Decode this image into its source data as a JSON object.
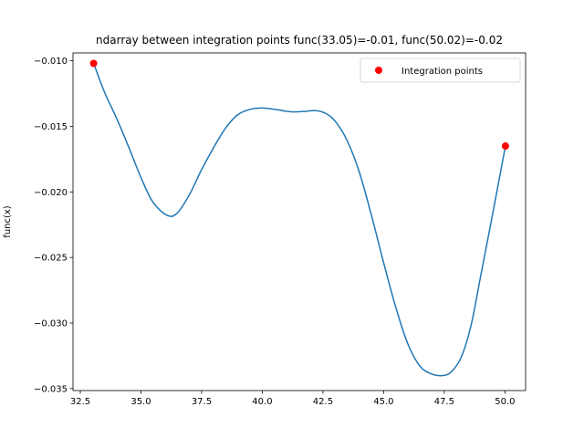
{
  "chart_data": {
    "type": "line",
    "title": "ndarray between integration points func(33.05)=-0.01, func(50.02)=-0.02",
    "xlabel": "",
    "ylabel": "func(x)",
    "xlim": [
      32.2,
      50.85
    ],
    "ylim": [
      -0.03515,
      -0.0094
    ],
    "xticks": [
      {
        "value": 32.5,
        "label": "32.5"
      },
      {
        "value": 35.0,
        "label": "35.0"
      },
      {
        "value": 37.5,
        "label": "37.5"
      },
      {
        "value": 40.0,
        "label": "40.0"
      },
      {
        "value": 42.5,
        "label": "42.5"
      },
      {
        "value": 45.0,
        "label": "45.0"
      },
      {
        "value": 47.5,
        "label": "47.5"
      },
      {
        "value": 50.0,
        "label": "50.0"
      }
    ],
    "yticks": [
      {
        "value": -0.01,
        "label": "−0.010"
      },
      {
        "value": -0.015,
        "label": "−0.015"
      },
      {
        "value": -0.02,
        "label": "−0.020"
      },
      {
        "value": -0.025,
        "label": "−0.025"
      },
      {
        "value": -0.03,
        "label": "−0.030"
      },
      {
        "value": -0.035,
        "label": "−0.035"
      }
    ],
    "grid": false,
    "legend": {
      "placement": "top-right",
      "entries": [
        "Integration points"
      ]
    },
    "series": [
      {
        "kind": "line",
        "color": "#1f77b4",
        "x": [
          33.05,
          33.5,
          34.0,
          34.5,
          35.0,
          35.5,
          36.1,
          36.5,
          37.0,
          37.5,
          38.0,
          38.5,
          39.0,
          39.5,
          40.0,
          40.5,
          41.0,
          41.3,
          41.8,
          42.2,
          42.6,
          43.0,
          43.5,
          44.0,
          44.5,
          45.0,
          45.5,
          46.0,
          46.5,
          47.0,
          47.45,
          47.8,
          48.2,
          48.6,
          49.0,
          49.5,
          50.02
        ],
        "y": [
          -0.0102,
          -0.0124,
          -0.0144,
          -0.0166,
          -0.0189,
          -0.0208,
          -0.0218,
          -0.0216,
          -0.0202,
          -0.0183,
          -0.0166,
          -0.0151,
          -0.0141,
          -0.0137,
          -0.0136,
          -0.0137,
          -0.01385,
          -0.0139,
          -0.01385,
          -0.0138,
          -0.014,
          -0.0146,
          -0.0161,
          -0.0185,
          -0.0218,
          -0.0254,
          -0.0288,
          -0.0316,
          -0.0333,
          -0.0339,
          -0.034,
          -0.0337,
          -0.0326,
          -0.0302,
          -0.0264,
          -0.0216,
          -0.0165
        ]
      },
      {
        "kind": "scatter",
        "name": "Integration points",
        "color": "#ff0000",
        "x": [
          33.05,
          50.02
        ],
        "y": [
          -0.0102,
          -0.0165
        ]
      }
    ]
  }
}
